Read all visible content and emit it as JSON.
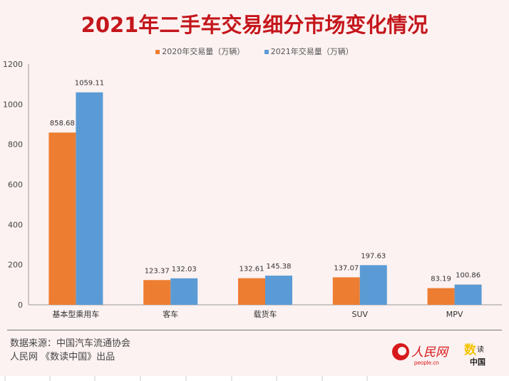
{
  "chart_data": {
    "type": "bar",
    "title": "2021年二手车交易细分市场变化情况",
    "categories": [
      "基本型乘用车",
      "客车",
      "载货车",
      "SUV",
      "MPV"
    ],
    "series": [
      {
        "name": "2020年交易量（万辆）",
        "color": "#ed7d31",
        "values": [
          858.68,
          123.37,
          132.61,
          137.07,
          83.19
        ],
        "labels": [
          "858.68",
          "123.37",
          "132.61",
          "137.07",
          "83.19"
        ]
      },
      {
        "name": "2021年交易量（万辆）",
        "color": "#5b9bd5",
        "values": [
          1059.11,
          132.03,
          145.38,
          197.63,
          100.86
        ],
        "labels": [
          "1059.11",
          "132.03",
          "145.38",
          "197.63",
          "100.86"
        ]
      }
    ],
    "ylim": [
      0,
      1200
    ],
    "yticks": [
      "0",
      "200",
      "400",
      "600",
      "800",
      "1000",
      "1200"
    ],
    "legend": "top-center",
    "xlabel": "",
    "ylabel": ""
  },
  "footer": {
    "source": "数据来源：中国汽车流通协会",
    "producer": "人民网 《数读中国》出品"
  },
  "logos": {
    "people": "人民网",
    "people_url": "people.cn",
    "shudu": "数读中国"
  }
}
